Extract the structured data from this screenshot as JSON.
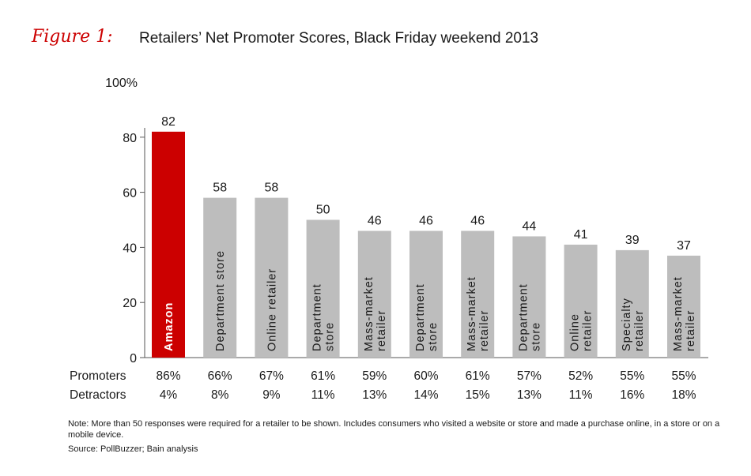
{
  "figure_label": "Figure 1:",
  "title": "Retailers’ Net Promoter Scores, Black Friday weekend 2013",
  "note": "Note: More than 50 responses were required for a retailer to be shown. Includes consumers who visited a website or store and made a purchase online, in a store or on a mobile device.",
  "source": "Source: PollBuzzer; Bain analysis",
  "chart_data": {
    "type": "bar",
    "categories": [
      [
        "Amazon"
      ],
      [
        "Department store"
      ],
      [
        "Online retailer"
      ],
      [
        "Department",
        "store"
      ],
      [
        "Mass-market",
        "retailer"
      ],
      [
        "Department",
        "store"
      ],
      [
        "Mass-market",
        "retailer"
      ],
      [
        "Department",
        "store"
      ],
      [
        "Online",
        "retailer"
      ],
      [
        "Specialty",
        "retailer"
      ],
      [
        "Mass-market",
        "retailer"
      ]
    ],
    "values": [
      82,
      58,
      58,
      50,
      46,
      46,
      46,
      44,
      41,
      39,
      37
    ],
    "highlight_index": 0,
    "colors": {
      "highlight": "#cc0000",
      "bar": "#bdbdbd",
      "axis": "#555555"
    },
    "ylim": [
      0,
      100
    ],
    "yticks": [
      "0",
      "20",
      "40",
      "60",
      "80",
      "100%"
    ],
    "ytick_values": [
      0,
      20,
      40,
      60,
      80,
      100
    ],
    "rows": [
      {
        "label": "Promoters",
        "values": [
          "86%",
          "66%",
          "67%",
          "61%",
          "59%",
          "60%",
          "61%",
          "57%",
          "52%",
          "55%",
          "55%"
        ]
      },
      {
        "label": "Detractors",
        "values": [
          "4%",
          "8%",
          "9%",
          "11%",
          "13%",
          "14%",
          "15%",
          "13%",
          "11%",
          "16%",
          "18%"
        ]
      }
    ]
  }
}
